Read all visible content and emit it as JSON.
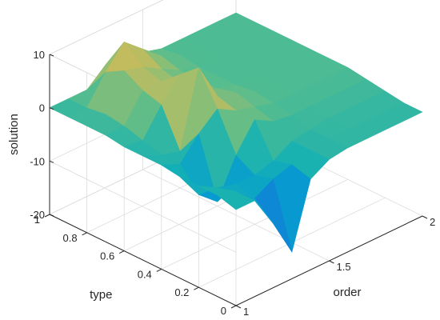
{
  "chart_data": {
    "type": "surface",
    "xlabel": "order",
    "ylabel": "type",
    "zlabel": "solution",
    "xlim": [
      1,
      2
    ],
    "ylim": [
      0,
      1
    ],
    "zlim": [
      -20,
      10
    ],
    "xticks": [
      "1",
      "1.5",
      "2"
    ],
    "yticks": [
      "0",
      "0.2",
      "0.4",
      "0.6",
      "0.8",
      "1"
    ],
    "zticks": [
      "-20",
      "-10",
      "0",
      "10"
    ],
    "grid": true,
    "colormap": "parula",
    "clim": [
      -16,
      12
    ],
    "x": [
      1.0,
      1.1,
      1.2,
      1.3,
      1.4,
      1.5,
      1.6,
      1.7,
      1.8,
      1.9,
      2.0
    ],
    "y": [
      0.0,
      0.1,
      0.2,
      0.3,
      0.4,
      0.5,
      0.6,
      0.7,
      0.8,
      0.9,
      1.0
    ],
    "z": [
      [
        -2,
        -2,
        -8,
        -15,
        -3,
        -1,
        -0.5,
        -0.5,
        -0.5,
        -0.5,
        -0.5
      ],
      [
        -1,
        -2,
        -5,
        -3,
        -2,
        -1,
        -0.5,
        -0.5,
        -0.5,
        -0.5,
        -0.5
      ],
      [
        -1,
        -3,
        -4,
        -4,
        -3,
        -1,
        -0.5,
        0,
        0,
        0,
        0
      ],
      [
        -1,
        -6,
        -9,
        -2,
        3,
        1,
        0.5,
        0.5,
        0.5,
        0.5,
        0.5
      ],
      [
        -0.5,
        -2,
        2,
        5,
        3,
        2,
        1,
        1,
        1,
        1,
        1
      ],
      [
        -0.5,
        -2,
        -3,
        11,
        4,
        3,
        1.5,
        1,
        1,
        1,
        1
      ],
      [
        -0.5,
        -1,
        4,
        8,
        3,
        2,
        1,
        1,
        1,
        1,
        1
      ],
      [
        0,
        0,
        5,
        5,
        3,
        2,
        1,
        1,
        1,
        1,
        1
      ],
      [
        0,
        0.5,
        7,
        6,
        4,
        2,
        1,
        1,
        1,
        1,
        1
      ],
      [
        0,
        0,
        5,
        9,
        6,
        3,
        1.5,
        1,
        1,
        1,
        1
      ],
      [
        0,
        0,
        0,
        3,
        3,
        2,
        1,
        1,
        1,
        1,
        1
      ]
    ]
  }
}
